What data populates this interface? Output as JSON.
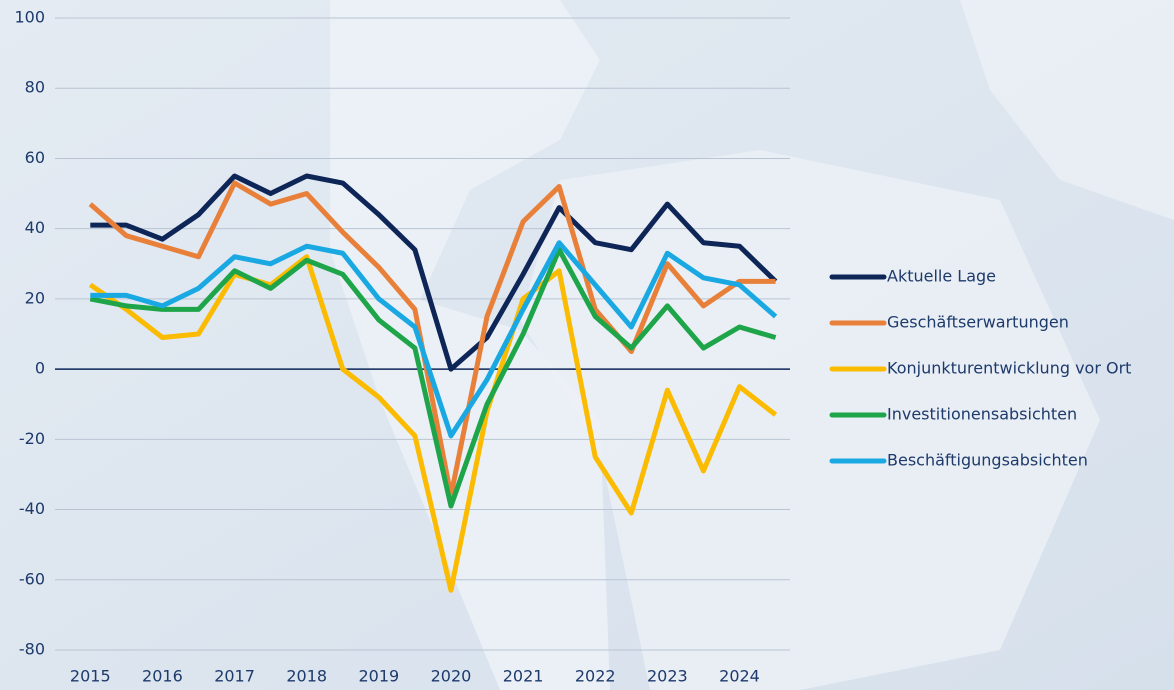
{
  "chart_data": {
    "type": "line",
    "x": [
      2015,
      2015.5,
      2016,
      2016.5,
      2017,
      2017.5,
      2018,
      2018.5,
      2019,
      2019.5,
      2020,
      2020.5,
      2021,
      2021.5,
      2022,
      2022.5,
      2023,
      2023.5,
      2024,
      2024.5
    ],
    "xlim": [
      2014.4,
      2024.7
    ],
    "xticks": [
      2015,
      2016,
      2017,
      2018,
      2019,
      2020,
      2021,
      2022,
      2023,
      2024
    ],
    "ylim": [
      -80,
      100
    ],
    "yticks": [
      -80,
      -60,
      -40,
      -20,
      0,
      20,
      40,
      60,
      80,
      100
    ],
    "grid": true,
    "legend": "right",
    "series": [
      {
        "name": "Aktuelle Lage",
        "color": "#0d2557",
        "values": [
          41,
          41,
          37,
          44,
          55,
          50,
          55,
          53,
          44,
          34,
          0,
          9,
          27,
          46,
          36,
          34,
          47,
          36,
          35,
          25
        ]
      },
      {
        "name": "Geschäftserwartungen",
        "color": "#e8803a",
        "values": [
          47,
          38,
          35,
          32,
          53,
          47,
          50,
          39,
          29,
          17,
          -36,
          15,
          42,
          52,
          17,
          5,
          30,
          18,
          25,
          25
        ]
      },
      {
        "name": "Konjunkturentwicklung vor Ort",
        "color": "#fbbb00",
        "values": [
          24,
          17,
          9,
          10,
          27,
          24,
          32,
          0,
          -8,
          -19,
          -63,
          -12,
          20,
          28,
          -25,
          -41,
          -6,
          -29,
          -5,
          -13
        ]
      },
      {
        "name": "Investitionensabsichten",
        "color": "#1ea54a",
        "values": [
          20,
          18,
          17,
          17,
          28,
          23,
          31,
          27,
          14,
          6,
          -39,
          -10,
          10,
          34,
          15,
          6,
          18,
          6,
          12,
          9
        ]
      },
      {
        "name": "Beschäftigungsabsichten",
        "color": "#19a8e2",
        "values": [
          21,
          21,
          18,
          23,
          32,
          30,
          35,
          33,
          20,
          12,
          -19,
          -3,
          17,
          36,
          24,
          12,
          33,
          26,
          24,
          15
        ]
      }
    ]
  }
}
